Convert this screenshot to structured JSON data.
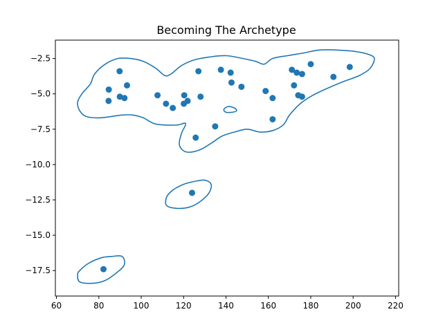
{
  "chart_data": {
    "type": "scatter",
    "title": "Becoming The Archetype",
    "xlabel": "",
    "ylabel": "",
    "xlim": [
      59.5,
      221.5
    ],
    "ylim": [
      -19.3,
      -1.2
    ],
    "xticks": [
      60,
      80,
      100,
      120,
      140,
      160,
      180,
      200,
      220
    ],
    "yticks": [
      -2.5,
      -5.0,
      -7.5,
      -10.0,
      -12.5,
      -15.0,
      -17.5
    ],
    "xtick_labels": [
      "60",
      "80",
      "100",
      "120",
      "140",
      "160",
      "180",
      "200",
      "220"
    ],
    "ytick_labels": [
      "−2.5",
      "−5.0",
      "−7.5",
      "−10.0",
      "−12.5",
      "−15.0",
      "−17.5"
    ],
    "grid": false,
    "series": [
      {
        "color": "#1f77b4",
        "points": [
          [
            84.7,
            -4.7
          ],
          [
            84.6,
            -5.5
          ],
          [
            89.8,
            -3.4
          ],
          [
            89.9,
            -5.2
          ],
          [
            92.1,
            -5.3
          ],
          [
            93.3,
            -4.4
          ],
          [
            107.7,
            -5.1
          ],
          [
            111.7,
            -5.7
          ],
          [
            114.9,
            -6.0
          ],
          [
            120.1,
            -5.7
          ],
          [
            120.3,
            -5.1
          ],
          [
            121.9,
            -5.5
          ],
          [
            125.7,
            -8.1
          ],
          [
            127.0,
            -3.4
          ],
          [
            128.0,
            -5.2
          ],
          [
            134.9,
            -7.3
          ],
          [
            137.6,
            -3.3
          ],
          [
            142.2,
            -3.5
          ],
          [
            142.6,
            -4.2
          ],
          [
            147.3,
            -4.5
          ],
          [
            158.7,
            -4.8
          ],
          [
            162.0,
            -5.3
          ],
          [
            162.0,
            -6.8
          ],
          [
            171.1,
            -3.3
          ],
          [
            172.1,
            -4.4
          ],
          [
            173.4,
            -3.5
          ],
          [
            174.1,
            -5.1
          ],
          [
            175.9,
            -3.6
          ],
          [
            175.9,
            -5.2
          ],
          [
            180.0,
            -2.9
          ],
          [
            190.7,
            -3.8
          ],
          [
            198.4,
            -3.1
          ],
          [
            124.0,
            -12.0
          ],
          [
            82.2,
            -17.4
          ]
        ]
      }
    ],
    "contours": [
      [
        [
          71,
          -6.2
        ],
        [
          74,
          -6.6
        ],
        [
          80,
          -6.7
        ],
        [
          86,
          -6.6
        ],
        [
          91,
          -6.5
        ],
        [
          96,
          -6.5
        ],
        [
          101,
          -6.7
        ],
        [
          106,
          -7.1
        ],
        [
          111,
          -7.2
        ],
        [
          117,
          -7.2
        ],
        [
          121,
          -7.1
        ],
        [
          119,
          -7.8
        ],
        [
          118,
          -8.6
        ],
        [
          121,
          -9.1
        ],
        [
          127,
          -9.0
        ],
        [
          133,
          -8.5
        ],
        [
          138,
          -8.0
        ],
        [
          144,
          -7.7
        ],
        [
          150,
          -7.5
        ],
        [
          156,
          -7.7
        ],
        [
          162,
          -7.6
        ],
        [
          167,
          -7.2
        ],
        [
          170,
          -6.5
        ],
        [
          175,
          -5.7
        ],
        [
          181,
          -5.1
        ],
        [
          188,
          -4.6
        ],
        [
          196,
          -4.1
        ],
        [
          203,
          -3.7
        ],
        [
          208,
          -3.2
        ],
        [
          210,
          -2.5
        ],
        [
          207,
          -2.2
        ],
        [
          201,
          -2.0
        ],
        [
          192,
          -1.9
        ],
        [
          184,
          -1.9
        ],
        [
          177,
          -2.1
        ],
        [
          169,
          -2.3
        ],
        [
          162,
          -2.5
        ],
        [
          158,
          -2.9
        ],
        [
          154,
          -2.7
        ],
        [
          148,
          -2.5
        ],
        [
          140,
          -2.3
        ],
        [
          132,
          -2.4
        ],
        [
          125,
          -2.6
        ],
        [
          119,
          -3.0
        ],
        [
          114,
          -3.6
        ],
        [
          111,
          -3.7
        ],
        [
          107,
          -3.2
        ],
        [
          101,
          -2.7
        ],
        [
          95,
          -2.5
        ],
        [
          89,
          -2.5
        ],
        [
          83,
          -2.9
        ],
        [
          78,
          -3.6
        ],
        [
          76,
          -4.3
        ],
        [
          72,
          -5.0
        ],
        [
          70,
          -5.6
        ],
        [
          71,
          -6.2
        ]
      ],
      [
        [
          139,
          -6.1
        ],
        [
          141,
          -5.9
        ],
        [
          144,
          -6.0
        ],
        [
          145,
          -6.2
        ],
        [
          143,
          -6.3
        ],
        [
          140,
          -6.3
        ],
        [
          139,
          -6.1
        ]
      ],
      [
        [
          112,
          -12.3
        ],
        [
          112,
          -12.9
        ],
        [
          117,
          -13.1
        ],
        [
          123,
          -13.0
        ],
        [
          128,
          -12.6
        ],
        [
          132,
          -12.0
        ],
        [
          133,
          -11.4
        ],
        [
          130,
          -11.1
        ],
        [
          125,
          -11.2
        ],
        [
          120,
          -11.4
        ],
        [
          115,
          -11.8
        ],
        [
          112,
          -12.3
        ]
      ],
      [
        [
          70,
          -17.8
        ],
        [
          71,
          -18.3
        ],
        [
          77,
          -18.4
        ],
        [
          83,
          -18.2
        ],
        [
          88,
          -17.7
        ],
        [
          92,
          -17.1
        ],
        [
          91,
          -16.5
        ],
        [
          86,
          -16.5
        ],
        [
          81,
          -16.6
        ],
        [
          75,
          -17.0
        ],
        [
          71,
          -17.5
        ],
        [
          70,
          -17.8
        ]
      ]
    ]
  }
}
